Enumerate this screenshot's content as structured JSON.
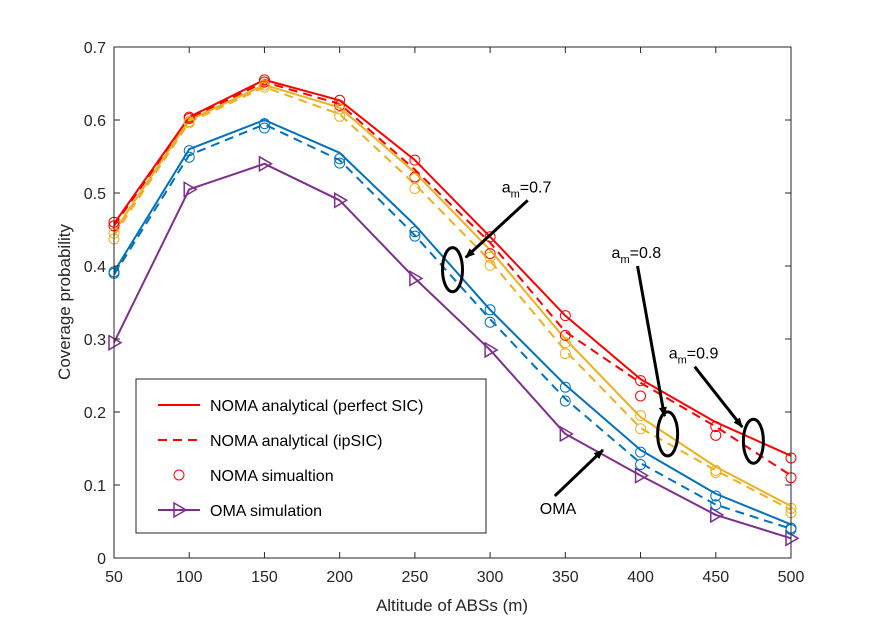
{
  "chart_data": {
    "type": "line",
    "xlabel": "Altitude of ABSs (m)",
    "ylabel": "Coverage probability",
    "xlim": [
      50,
      500
    ],
    "ylim": [
      0,
      0.7
    ],
    "xticks": [
      "50",
      "100",
      "150",
      "200",
      "250",
      "300",
      "350",
      "400",
      "450",
      "500"
    ],
    "yticks": [
      "0",
      "0.1",
      "0.2",
      "0.3",
      "0.4",
      "0.5",
      "0.6",
      "0.7"
    ],
    "x": [
      50,
      100,
      150,
      200,
      250,
      300,
      350,
      400,
      450,
      500
    ],
    "colors": {
      "red": "#ff0000",
      "yellow": "#edb120",
      "blue": "#0072bd",
      "purple": "#7e2f8e"
    },
    "series": [
      {
        "name": "red-solid",
        "style": "solid",
        "color": "red",
        "values": [
          0.458,
          0.604,
          0.655,
          0.627,
          0.545,
          0.44,
          0.332,
          0.245,
          0.186,
          0.14
        ]
      },
      {
        "name": "red-dashed",
        "style": "dashed",
        "color": "red",
        "values": [
          0.455,
          0.602,
          0.652,
          0.622,
          0.532,
          0.432,
          0.31,
          0.24,
          0.18,
          0.113
        ]
      },
      {
        "name": "yellow-solid",
        "style": "solid",
        "color": "yellow",
        "values": [
          0.447,
          0.6,
          0.648,
          0.617,
          0.528,
          0.422,
          0.3,
          0.193,
          0.125,
          0.071
        ]
      },
      {
        "name": "yellow-dashed",
        "style": "dashed",
        "color": "yellow",
        "values": [
          0.442,
          0.597,
          0.645,
          0.608,
          0.512,
          0.407,
          0.284,
          0.178,
          0.12,
          0.066
        ]
      },
      {
        "name": "blue-solid",
        "style": "solid",
        "color": "blue",
        "values": [
          0.392,
          0.56,
          0.6,
          0.555,
          0.456,
          0.34,
          0.237,
          0.148,
          0.088,
          0.046
        ]
      },
      {
        "name": "blue-dashed",
        "style": "dashed",
        "color": "blue",
        "values": [
          0.388,
          0.552,
          0.594,
          0.545,
          0.442,
          0.327,
          0.218,
          0.13,
          0.073,
          0.04
        ]
      },
      {
        "name": "OMA simulation",
        "style": "solid",
        "color": "purple",
        "marker": "triangle-right",
        "values": [
          0.295,
          0.505,
          0.54,
          0.49,
          0.383,
          0.285,
          0.17,
          0.113,
          0.059,
          0.027
        ]
      }
    ],
    "sim_markers": [
      {
        "color": "red",
        "values": [
          0.46,
          0.604,
          0.655,
          0.627,
          0.545,
          0.44,
          0.332,
          0.243,
          0.18,
          0.137
        ]
      },
      {
        "color": "red",
        "values": [
          0.455,
          0.602,
          0.652,
          0.62,
          0.522,
          0.417,
          0.305,
          0.222,
          0.168,
          0.11
        ]
      },
      {
        "color": "yellow",
        "values": [
          0.445,
          0.598,
          0.648,
          0.615,
          0.52,
          0.412,
          0.295,
          0.195,
          0.12,
          0.068
        ]
      },
      {
        "color": "yellow",
        "values": [
          0.437,
          0.596,
          0.645,
          0.605,
          0.506,
          0.401,
          0.28,
          0.177,
          0.117,
          0.062
        ]
      },
      {
        "color": "blue",
        "values": [
          0.392,
          0.558,
          0.595,
          0.547,
          0.447,
          0.34,
          0.234,
          0.145,
          0.085,
          0.041
        ]
      },
      {
        "color": "blue",
        "values": [
          0.39,
          0.549,
          0.589,
          0.541,
          0.441,
          0.323,
          0.215,
          0.128,
          0.073,
          0.039
        ]
      }
    ],
    "legend": {
      "position": "bottom-left",
      "entries": [
        {
          "label": "NOMA analytical (perfect SIC)",
          "kind": "solid-line",
          "color": "red"
        },
        {
          "label": "NOMA analytical (ipSIC)",
          "kind": "dashed-line",
          "color": "red"
        },
        {
          "label": "NOMA simualtion",
          "kind": "circle",
          "color": "red"
        },
        {
          "label": "OMA simulation",
          "kind": "triangle-line",
          "color": "purple"
        }
      ]
    },
    "annotations": [
      {
        "base": "a",
        "sub": "m",
        "rest": "=0.7",
        "ellipse_at": [
          275,
          0.395
        ],
        "arrow_from": [
          325,
          0.49
        ]
      },
      {
        "base": "a",
        "sub": "m",
        "rest": "=0.8",
        "ellipse_at": [
          418,
          0.17
        ],
        "arrow_from": [
          398,
          0.4
        ]
      },
      {
        "base": "a",
        "sub": "m",
        "rest": "=0.9",
        "ellipse_at": [
          475,
          0.16
        ],
        "arrow_from": [
          436,
          0.262
        ]
      },
      {
        "text": "OMA",
        "arrow_to": [
          375,
          0.148
        ],
        "arrow_from": [
          343,
          0.085
        ]
      }
    ]
  }
}
